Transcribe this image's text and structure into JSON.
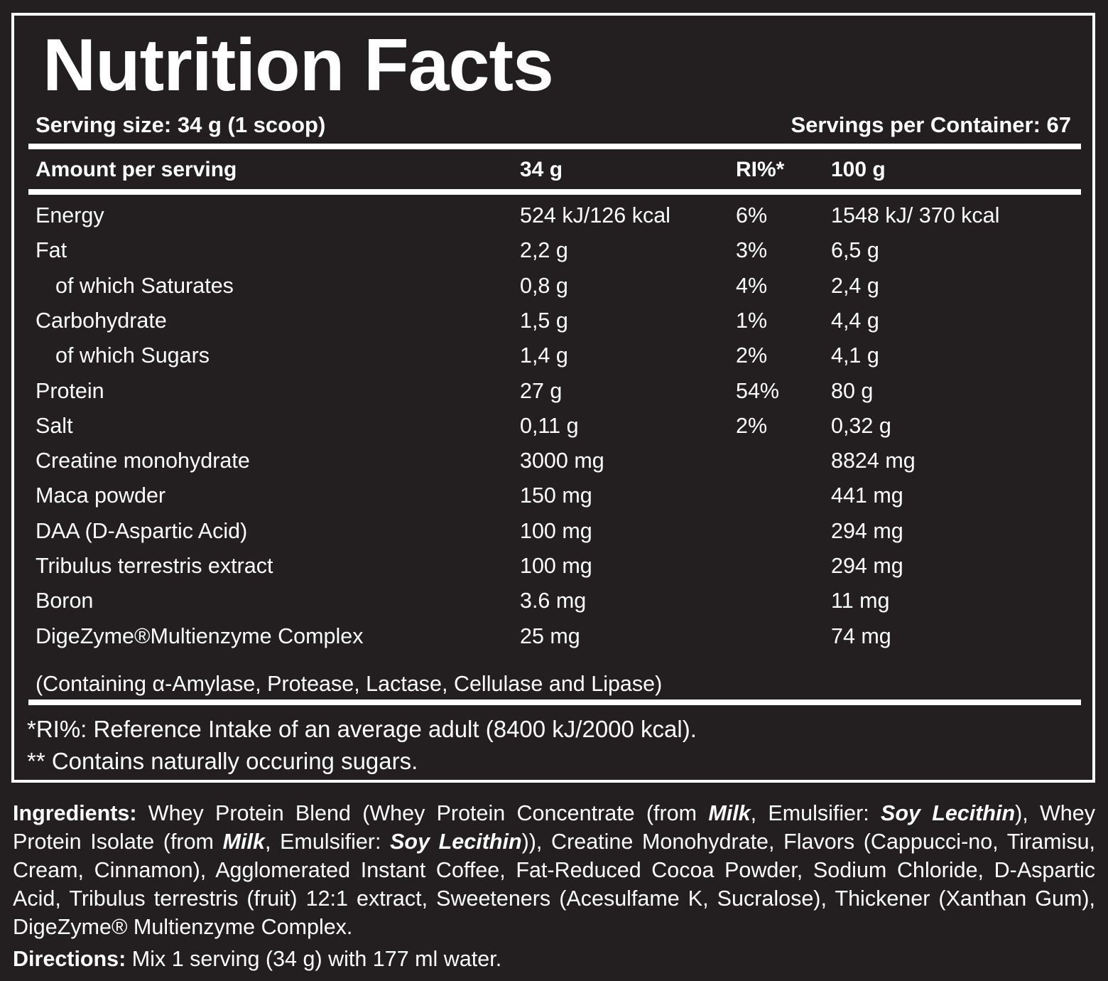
{
  "title": "Nutrition Facts",
  "serving_size": "Serving size: 34 g (1 scoop)",
  "servings_per_container": "Servings per Container: 67",
  "headers": {
    "amount": "Amount per serving",
    "per_serving": "34 g",
    "ri": "RI%*",
    "per_100g": "100 g"
  },
  "rows": [
    {
      "name": "Energy",
      "serving": "524 kJ/126 kcal",
      "ri": "6%",
      "per100": "1548 kJ/ 370 kcal"
    },
    {
      "name": "Fat",
      "serving": "2,2 g",
      "ri": "3%",
      "per100": "6,5 g"
    },
    {
      "name": "of which Saturates",
      "serving": "0,8 g",
      "ri": "4%",
      "per100": "2,4 g"
    },
    {
      "name": "Carbohydrate",
      "serving": "1,5 g",
      "ri": "1%",
      "per100": "4,4 g"
    },
    {
      "name": "of which Sugars",
      "serving": "1,4 g",
      "ri": "2%",
      "per100": "4,1 g"
    },
    {
      "name": "Protein",
      "serving": "27 g",
      "ri": "54%",
      "per100": "80 g"
    },
    {
      "name": "Salt",
      "serving": "0,11 g",
      "ri": "2%",
      "per100": "0,32 g"
    },
    {
      "name": "Creatine monohydrate",
      "serving": "3000 mg",
      "ri": "",
      "per100": "8824 mg"
    },
    {
      "name": "Maca powder",
      "serving": "150 mg",
      "ri": "",
      "per100": "441 mg"
    },
    {
      "name": "DAA (D-Aspartic Acid)",
      "serving": "100 mg",
      "ri": "",
      "per100": "294 mg"
    },
    {
      "name": "Tribulus terrestris extract",
      "serving": "100 mg",
      "ri": "",
      "per100": "294 mg"
    },
    {
      "name": "Boron",
      "serving": "3.6 mg",
      "ri": "",
      "per100": "11 mg"
    },
    {
      "name": "DigeZyme®Multienzyme Complex",
      "serving": "25 mg",
      "ri": "",
      "per100": "74 mg"
    }
  ],
  "enzyme_note": "(Containing α-Amylase, Protease, Lactase, Cellulase and Lipase)",
  "footnotes": [
    "*RI%: Reference Intake of an average adult (8400 kJ/2000 kcal).",
    "** Contains naturally occuring sugars."
  ],
  "ingredients": {
    "label": "Ingredients:",
    "p1": " Whey Protein Blend (Whey Protein Concentrate (from ",
    "milk1": "Milk",
    "p2": ", Emulsifier: ",
    "soy1": "Soy Lecithin",
    "p3": "), Whey Protein Isolate (from ",
    "milk2": "Milk",
    "p4": ", Emulsifier: ",
    "soy2": "Soy Lecithin",
    "p5": ")),  Creatine Monohydrate, Flavors (Cappucci-no, Tiramisu, Cream, Cinnamon), Agglomerated Instant Coffee, Fat-Reduced Cocoa Powder, Sodium Chloride, D-Aspartic Acid, Tribulus terrestris (fruit) 12:1 extract, Sweeteners (Acesulfame K, Sucralose), Thickener (Xanthan Gum), DigeZyme® Multienzyme Complex."
  },
  "directions": {
    "label": "Directions:",
    "text": " Mix 1 serving (34 g) with 177 ml water."
  },
  "colors": {
    "background": "#231f20",
    "text": "#ffffff",
    "rules": "#ffffff"
  }
}
